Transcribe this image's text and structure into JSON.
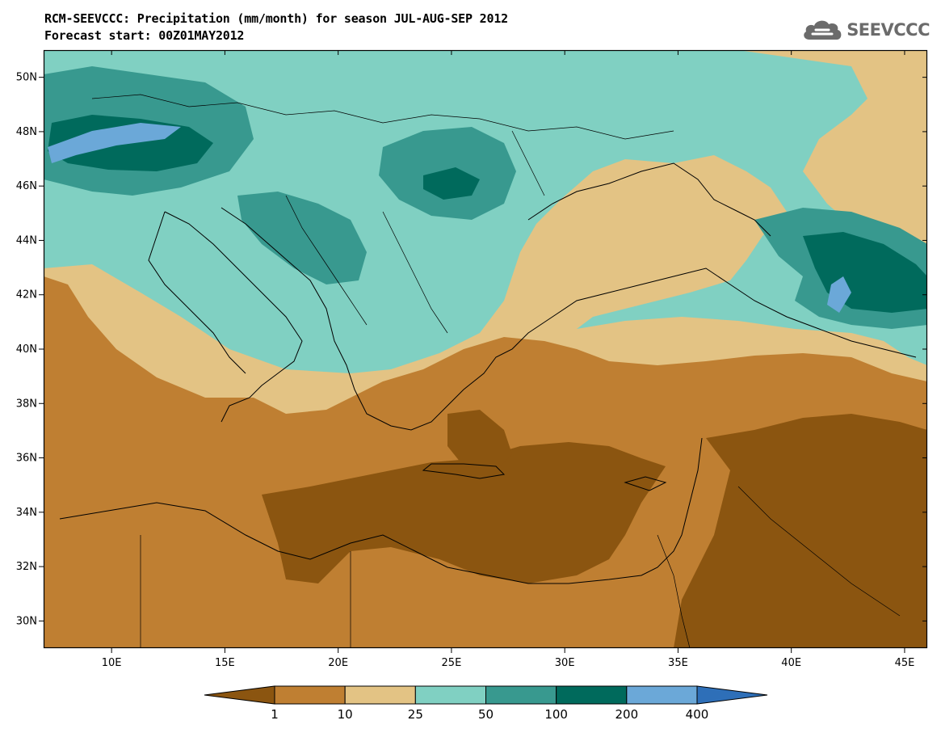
{
  "header": {
    "title_line1": "RCM-SEEVCCC: Precipitation (mm/month) for season JUL-AUG-SEP 2012",
    "title_line2": "Forecast start: 00Z01MAY2012"
  },
  "logo": {
    "text": "SEEVCCC",
    "icon": "cloud-icon"
  },
  "map": {
    "lon_range": [
      7,
      46
    ],
    "lat_range": [
      29,
      51
    ],
    "lat_ticks": [
      {
        "value": 30,
        "label": "30N"
      },
      {
        "value": 32,
        "label": "32N"
      },
      {
        "value": 34,
        "label": "34N"
      },
      {
        "value": 36,
        "label": "36N"
      },
      {
        "value": 38,
        "label": "38N"
      },
      {
        "value": 40,
        "label": "40N"
      },
      {
        "value": 42,
        "label": "42N"
      },
      {
        "value": 44,
        "label": "44N"
      },
      {
        "value": 46,
        "label": "46N"
      },
      {
        "value": 48,
        "label": "48N"
      },
      {
        "value": 50,
        "label": "50N"
      }
    ],
    "lon_ticks": [
      {
        "value": 10,
        "label": "10E"
      },
      {
        "value": 15,
        "label": "15E"
      },
      {
        "value": 20,
        "label": "20E"
      },
      {
        "value": 25,
        "label": "25E"
      },
      {
        "value": 30,
        "label": "30E"
      },
      {
        "value": 35,
        "label": "35E"
      },
      {
        "value": 40,
        "label": "40E"
      },
      {
        "value": 45,
        "label": "45E"
      }
    ]
  },
  "colorbar": {
    "colors": [
      "#8b5510",
      "#bf7f32",
      "#e3c384",
      "#80d0c2",
      "#38998f",
      "#006a5c",
      "#6ba8d8",
      "#2e6fb8"
    ],
    "labels": [
      "1",
      "10",
      "25",
      "50",
      "100",
      "200",
      "400"
    ]
  }
}
